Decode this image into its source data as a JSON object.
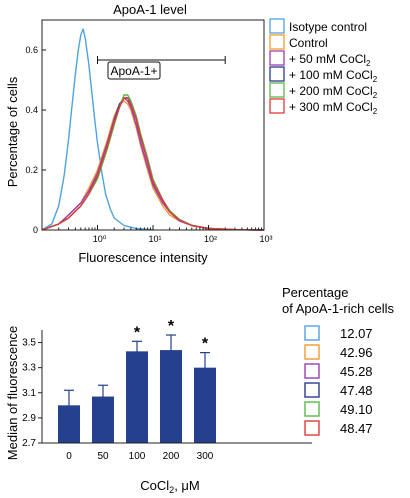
{
  "chart_data": [
    {
      "type": "line",
      "title": "ApoA-1 level",
      "xlabel": "Fluorescence intensity",
      "ylabel": "Percentage of cells",
      "x_scale": "log",
      "xlim": [
        0.1,
        1000
      ],
      "ylim": [
        0,
        0.7
      ],
      "x_ticks": [
        "10⁰",
        "10¹",
        "10²",
        "10³"
      ],
      "y_ticks": [
        "0",
        "0.2",
        "0.4",
        "0.6"
      ],
      "gate_label": "ApoA-1+",
      "gate_range": [
        1,
        200
      ],
      "legend_position": "top-right",
      "series": [
        {
          "name": "Isotype control",
          "color": "#4fa3e0",
          "x": [
            0.1,
            0.15,
            0.2,
            0.25,
            0.3,
            0.35,
            0.4,
            0.45,
            0.5,
            0.55,
            0.6,
            0.7,
            0.8,
            0.9,
            1,
            1.2,
            1.4,
            1.7,
            2,
            3,
            5,
            10
          ],
          "y": [
            0.0,
            0.02,
            0.08,
            0.18,
            0.3,
            0.42,
            0.52,
            0.6,
            0.65,
            0.67,
            0.64,
            0.55,
            0.45,
            0.36,
            0.29,
            0.19,
            0.12,
            0.07,
            0.04,
            0.015,
            0.005,
            0.0
          ]
        },
        {
          "name": "Control",
          "color": "#f39a2c",
          "x": [
            0.1,
            0.2,
            0.3,
            0.5,
            0.7,
            1,
            1.5,
            2,
            2.5,
            3,
            3.5,
            4,
            5,
            6,
            8,
            10,
            15,
            20,
            30,
            50,
            100,
            300,
            1000
          ],
          "y": [
            0.0,
            0.02,
            0.05,
            0.09,
            0.14,
            0.2,
            0.3,
            0.38,
            0.42,
            0.43,
            0.42,
            0.4,
            0.34,
            0.28,
            0.2,
            0.14,
            0.08,
            0.05,
            0.03,
            0.015,
            0.005,
            0.001,
            0.0
          ]
        },
        {
          "name": "+ 50 mM CoCl2",
          "color": "#9b3fb5",
          "x": [
            0.1,
            0.2,
            0.3,
            0.5,
            0.7,
            1,
            1.5,
            2,
            2.5,
            3,
            3.5,
            4,
            5,
            6,
            8,
            10,
            15,
            20,
            30,
            50,
            100,
            300,
            1000
          ],
          "y": [
            0.0,
            0.02,
            0.05,
            0.09,
            0.13,
            0.19,
            0.29,
            0.37,
            0.42,
            0.44,
            0.43,
            0.41,
            0.35,
            0.29,
            0.21,
            0.15,
            0.09,
            0.06,
            0.03,
            0.015,
            0.005,
            0.001,
            0.0
          ]
        },
        {
          "name": "+ 100 mM CoCl2",
          "color": "#2e3a8f",
          "x": [
            0.1,
            0.2,
            0.3,
            0.5,
            0.7,
            1,
            1.5,
            2,
            2.5,
            3,
            3.5,
            4,
            5,
            6,
            8,
            10,
            15,
            20,
            30,
            50,
            100,
            300,
            1000
          ],
          "y": [
            0.0,
            0.02,
            0.04,
            0.08,
            0.12,
            0.18,
            0.28,
            0.36,
            0.42,
            0.44,
            0.44,
            0.42,
            0.37,
            0.31,
            0.23,
            0.16,
            0.1,
            0.06,
            0.035,
            0.015,
            0.005,
            0.001,
            0.0
          ]
        },
        {
          "name": "+ 200 mM CoCl2",
          "color": "#58b94c",
          "x": [
            0.1,
            0.2,
            0.3,
            0.5,
            0.7,
            1,
            1.5,
            2,
            2.5,
            3,
            3.5,
            4,
            5,
            6,
            8,
            10,
            15,
            20,
            30,
            50,
            100,
            300,
            1000
          ],
          "y": [
            0.0,
            0.02,
            0.04,
            0.08,
            0.12,
            0.17,
            0.27,
            0.35,
            0.41,
            0.45,
            0.45,
            0.43,
            0.38,
            0.32,
            0.24,
            0.17,
            0.1,
            0.065,
            0.035,
            0.016,
            0.005,
            0.001,
            0.0
          ]
        },
        {
          "name": "+ 300 mM CoCl2",
          "color": "#e23a3a",
          "x": [
            0.1,
            0.2,
            0.3,
            0.5,
            0.7,
            1,
            1.5,
            2,
            2.5,
            3,
            3.5,
            4,
            5,
            6,
            8,
            10,
            15,
            20,
            30,
            50,
            100,
            300,
            1000
          ],
          "y": [
            0.0,
            0.02,
            0.04,
            0.08,
            0.12,
            0.18,
            0.28,
            0.36,
            0.41,
            0.44,
            0.44,
            0.42,
            0.37,
            0.31,
            0.23,
            0.16,
            0.1,
            0.06,
            0.033,
            0.015,
            0.005,
            0.001,
            0.0
          ]
        }
      ]
    },
    {
      "type": "bar",
      "xlabel": "CoCl",
      "xlabel_sub": "2",
      "xlabel_suffix": ", μM",
      "ylabel": "Median of fluorescence",
      "categories": [
        "0",
        "50",
        "100",
        "200",
        "300"
      ],
      "values": [
        3.0,
        3.07,
        3.43,
        3.44,
        3.3
      ],
      "errors": [
        0.12,
        0.09,
        0.08,
        0.12,
        0.12
      ],
      "significance": [
        "",
        "",
        "*",
        "*",
        "*"
      ],
      "ylim": [
        2.7,
        3.6
      ],
      "y_ticks": [
        "2.7",
        "2.9",
        "3.1",
        "3.3",
        "3.5"
      ],
      "bar_color": "#24408e"
    }
  ],
  "percentage_panel": {
    "title_line1": "Percentage",
    "title_line2": "of ApoA-1-rich cells",
    "items": [
      {
        "color": "#4fa3e0",
        "value": "12.07"
      },
      {
        "color": "#f39a2c",
        "value": "42.96"
      },
      {
        "color": "#9b3fb5",
        "value": "45.28"
      },
      {
        "color": "#2e3a8f",
        "value": "47.48"
      },
      {
        "color": "#58b94c",
        "value": "49.10"
      },
      {
        "color": "#e23a3a",
        "value": "48.47"
      }
    ]
  }
}
